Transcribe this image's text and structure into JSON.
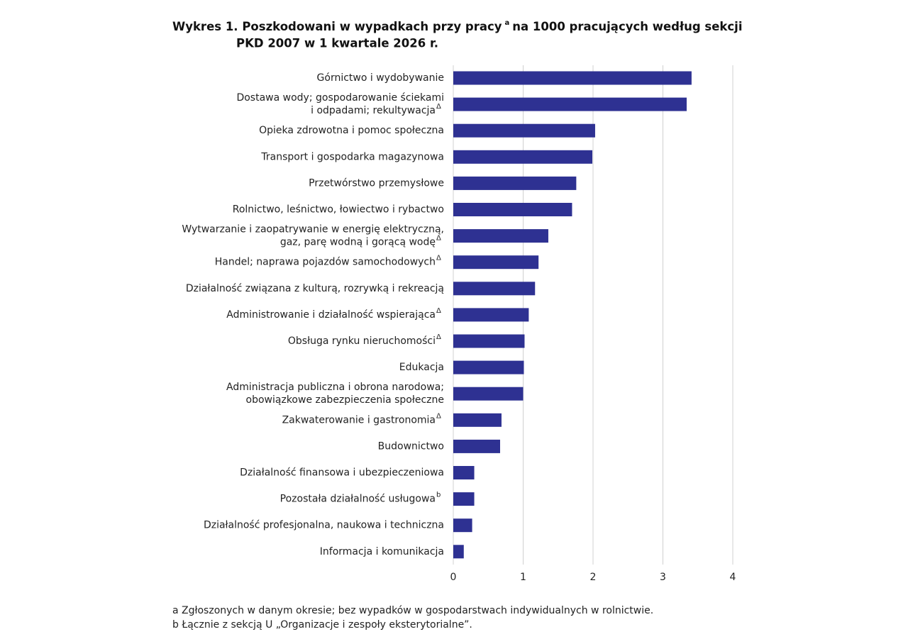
{
  "chart_data": {
    "type": "barh",
    "title": [
      "Wykres 1. Poszkodowani w wypadkach przy pracy",
      "na 1000 pracujących według sekcji",
      "PKD 2007 w 1 kwartale 2026 r."
    ],
    "title_note": "a",
    "categories": [
      [
        "Górnictwo i wydobywanie"
      ],
      [
        "Dostawa wody; gospodarowanie ściekami",
        "i odpadami; rekultywacja"
      ],
      [
        "Opieka zdrowotna i pomoc społeczna"
      ],
      [
        "Transport i gospodarka magazynowa"
      ],
      [
        "Przetwórstwo przemysłowe"
      ],
      [
        "Rolnictwo, leśnictwo, łowiectwo i rybactwo"
      ],
      [
        "Wytwarzanie i zaopatrywanie w energię elektryczną,",
        "gaz, parę wodną i gorącą wodę"
      ],
      [
        "Handel; naprawa pojazdów samochodowych"
      ],
      [
        "Działalność związana z kulturą, rozrywką i rekreacją"
      ],
      [
        "Administrowanie i działalność wspierająca"
      ],
      [
        "Obsługa rynku nieruchomości"
      ],
      [
        "Edukacja"
      ],
      [
        "Administracja publiczna i obrona narodowa;",
        "obowiązkowe zabezpieczenia społeczne"
      ],
      [
        "Zakwaterowanie i gastronomia"
      ],
      [
        "Budownictwo"
      ],
      [
        "Działalność finansowa i ubezpieczeniowa"
      ],
      [
        "Pozostała działalność usługowa"
      ],
      [
        "Działalność profesjonalna, naukowa i techniczna"
      ],
      [
        "Informacja i komunikacja"
      ]
    ],
    "category_notes": [
      null,
      "Δ",
      null,
      null,
      null,
      null,
      "Δ",
      "Δ",
      null,
      "Δ",
      "Δ",
      null,
      null,
      "Δ",
      null,
      null,
      "b",
      null,
      null
    ],
    "values": [
      3.41,
      3.34,
      2.03,
      1.99,
      1.76,
      1.7,
      1.36,
      1.22,
      1.17,
      1.08,
      1.02,
      1.01,
      1.0,
      0.69,
      0.67,
      0.3,
      0.3,
      0.27,
      0.15
    ],
    "color": "#2e3192",
    "xlim": [
      0,
      4
    ],
    "xticks": [
      0,
      1,
      2,
      3,
      4
    ],
    "grid": true,
    "footnotes": [
      "a Zgłoszonych w danym okresie; bez wypadków w gospodarstwach indywidualnych w rolnictwie.",
      "b Łącznie z sekcją U „Organizacje i zespoły eksterytorialne”."
    ]
  }
}
